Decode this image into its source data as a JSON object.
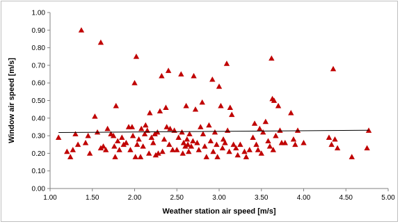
{
  "chart_data": {
    "type": "scatter",
    "title": "",
    "xlabel": "Weather station air speed [m/s]",
    "ylabel": "Window air speed [m/s]",
    "xlim": [
      1.0,
      5.0
    ],
    "ylim": [
      0.0,
      1.0
    ],
    "x_ticks": [
      "1.00",
      "1.50",
      "2.00",
      "2.50",
      "3.00",
      "3.50",
      "4.00",
      "4.50",
      "5.00"
    ],
    "y_ticks": [
      "0.00",
      "0.10",
      "0.20",
      "0.30",
      "0.40",
      "0.50",
      "0.60",
      "0.70",
      "0.80",
      "0.90",
      "1.00"
    ],
    "grid": false,
    "legend": "none",
    "marker": "triangle",
    "colors": {
      "marker": "#c00000",
      "trendline": "#000000",
      "axis": "#808080"
    },
    "trendline": {
      "type": "linear",
      "points": [
        [
          1.1,
          0.318
        ],
        [
          4.77,
          0.331
        ]
      ]
    },
    "points": [
      [
        1.1,
        0.29
      ],
      [
        1.2,
        0.21
      ],
      [
        1.24,
        0.18
      ],
      [
        1.27,
        0.22
      ],
      [
        1.3,
        0.31
      ],
      [
        1.33,
        0.25
      ],
      [
        1.37,
        0.9
      ],
      [
        1.42,
        0.26
      ],
      [
        1.45,
        0.3
      ],
      [
        1.47,
        0.2
      ],
      [
        1.53,
        0.41
      ],
      [
        1.56,
        0.32
      ],
      [
        1.6,
        0.83
      ],
      [
        1.6,
        0.23
      ],
      [
        1.63,
        0.24
      ],
      [
        1.66,
        0.22
      ],
      [
        1.68,
        0.34
      ],
      [
        1.72,
        0.31
      ],
      [
        1.75,
        0.3
      ],
      [
        1.76,
        0.24
      ],
      [
        1.77,
        0.18
      ],
      [
        1.78,
        0.47
      ],
      [
        1.8,
        0.27
      ],
      [
        1.82,
        0.22
      ],
      [
        1.85,
        0.29
      ],
      [
        1.87,
        0.25
      ],
      [
        1.9,
        0.26
      ],
      [
        1.93,
        0.35
      ],
      [
        1.95,
        0.22
      ],
      [
        1.97,
        0.35
      ],
      [
        1.98,
        0.3
      ],
      [
        2.0,
        0.6
      ],
      [
        2.01,
        0.18
      ],
      [
        2.02,
        0.75
      ],
      [
        2.03,
        0.25
      ],
      [
        2.05,
        0.28
      ],
      [
        2.07,
        0.18
      ],
      [
        2.08,
        0.34
      ],
      [
        2.1,
        0.24
      ],
      [
        2.12,
        0.31
      ],
      [
        2.13,
        0.36
      ],
      [
        2.15,
        0.33
      ],
      [
        2.17,
        0.2
      ],
      [
        2.18,
        0.43
      ],
      [
        2.2,
        0.29
      ],
      [
        2.22,
        0.26
      ],
      [
        2.24,
        0.31
      ],
      [
        2.25,
        0.19
      ],
      [
        2.27,
        0.32
      ],
      [
        2.28,
        0.2
      ],
      [
        2.3,
        0.44
      ],
      [
        2.32,
        0.64
      ],
      [
        2.33,
        0.21
      ],
      [
        2.35,
        0.28
      ],
      [
        2.37,
        0.46
      ],
      [
        2.38,
        0.35
      ],
      [
        2.4,
        0.67
      ],
      [
        2.41,
        0.25
      ],
      [
        2.42,
        0.34
      ],
      [
        2.45,
        0.22
      ],
      [
        2.47,
        0.33
      ],
      [
        2.5,
        0.22
      ],
      [
        2.52,
        0.29
      ],
      [
        2.55,
        0.65
      ],
      [
        2.56,
        0.32
      ],
      [
        2.57,
        0.2
      ],
      [
        2.58,
        0.26
      ],
      [
        2.6,
        0.24
      ],
      [
        2.61,
        0.47
      ],
      [
        2.62,
        0.28
      ],
      [
        2.63,
        0.25
      ],
      [
        2.64,
        0.21
      ],
      [
        2.65,
        0.31
      ],
      [
        2.67,
        0.24
      ],
      [
        2.69,
        0.27
      ],
      [
        2.7,
        0.64
      ],
      [
        2.72,
        0.45
      ],
      [
        2.74,
        0.26
      ],
      [
        2.76,
        0.22
      ],
      [
        2.78,
        0.35
      ],
      [
        2.8,
        0.49
      ],
      [
        2.81,
        0.31
      ],
      [
        2.83,
        0.24
      ],
      [
        2.85,
        0.18
      ],
      [
        2.88,
        0.36
      ],
      [
        2.9,
        0.27
      ],
      [
        2.92,
        0.62
      ],
      [
        2.93,
        0.21
      ],
      [
        2.95,
        0.32
      ],
      [
        2.97,
        0.25
      ],
      [
        2.98,
        0.18
      ],
      [
        3.0,
        0.58
      ],
      [
        3.02,
        0.47
      ],
      [
        3.04,
        0.23
      ],
      [
        3.05,
        0.28
      ],
      [
        3.07,
        0.26
      ],
      [
        3.09,
        0.71
      ],
      [
        3.1,
        0.33
      ],
      [
        3.12,
        0.21
      ],
      [
        3.13,
        0.46
      ],
      [
        3.15,
        0.42
      ],
      [
        3.17,
        0.25
      ],
      [
        3.2,
        0.23
      ],
      [
        3.22,
        0.19
      ],
      [
        3.25,
        0.25
      ],
      [
        3.3,
        0.21
      ],
      [
        3.32,
        0.18
      ],
      [
        3.36,
        0.22
      ],
      [
        3.4,
        0.29
      ],
      [
        3.42,
        0.37
      ],
      [
        3.44,
        0.25
      ],
      [
        3.46,
        0.22
      ],
      [
        3.48,
        0.34
      ],
      [
        3.5,
        0.2
      ],
      [
        3.52,
        0.32
      ],
      [
        3.55,
        0.38
      ],
      [
        3.58,
        0.27
      ],
      [
        3.6,
        0.24
      ],
      [
        3.62,
        0.74
      ],
      [
        3.63,
        0.51
      ],
      [
        3.64,
        0.22
      ],
      [
        3.65,
        0.5
      ],
      [
        3.67,
        0.3
      ],
      [
        3.7,
        0.47
      ],
      [
        3.72,
        0.33
      ],
      [
        3.74,
        0.26
      ],
      [
        3.78,
        0.26
      ],
      [
        3.85,
        0.43
      ],
      [
        3.88,
        0.28
      ],
      [
        3.9,
        0.25
      ],
      [
        3.93,
        0.33
      ],
      [
        4.0,
        0.26
      ],
      [
        4.3,
        0.29
      ],
      [
        4.33,
        0.25
      ],
      [
        4.35,
        0.68
      ],
      [
        4.37,
        0.28
      ],
      [
        4.4,
        0.23
      ],
      [
        4.57,
        0.18
      ],
      [
        4.75,
        0.23
      ],
      [
        4.77,
        0.33
      ]
    ]
  }
}
